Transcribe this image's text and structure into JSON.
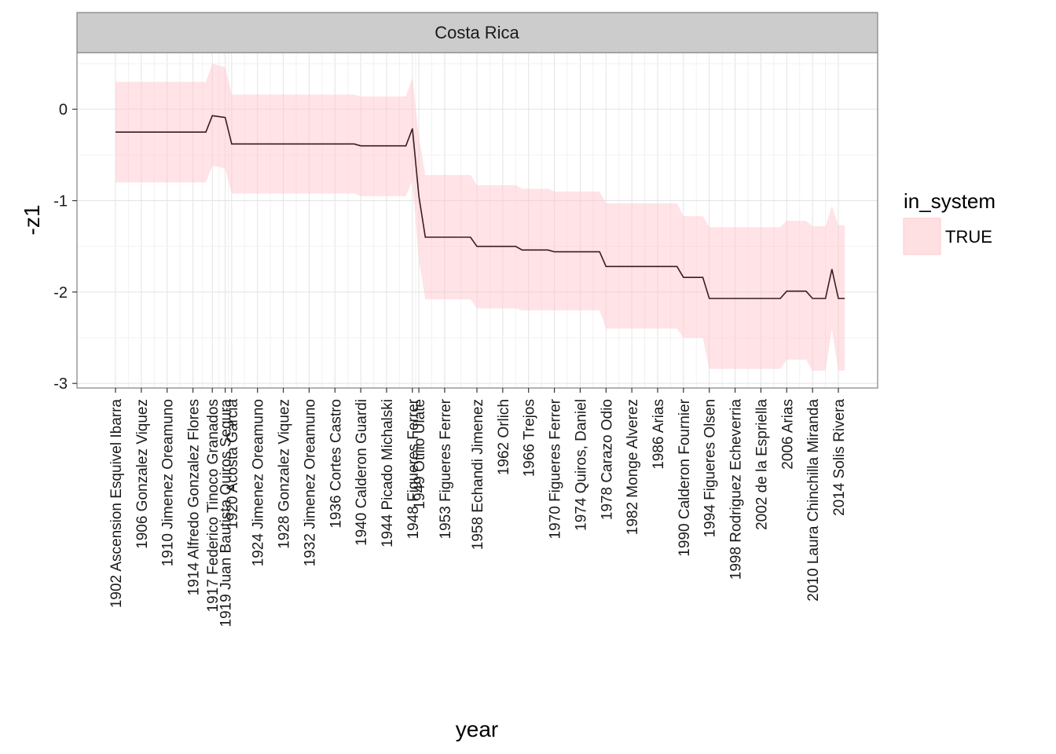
{
  "chart_data": {
    "type": "line",
    "facet": "Costa Rica",
    "xlabel": "year",
    "ylabel": "-z1",
    "ylim": [
      -3.05,
      0.62
    ],
    "y_ticks": [
      0,
      -1,
      -2,
      -3
    ],
    "y_tick_labels": [
      "0",
      "-1",
      "-2",
      "-3"
    ],
    "grid": true,
    "legend": {
      "title": "in_system",
      "position": "right",
      "entries": [
        "TRUE"
      ],
      "fill": "#ffe0e2",
      "border": "#ffc9ce"
    },
    "line_color": "#3d1a1e",
    "band_color": "#ffc2c8",
    "x_tick_labels": [
      {
        "year": 1902,
        "label": "1902 Ascension Esquivel Ibarra"
      },
      {
        "year": 1906,
        "label": "1906 Gonzalez Viquez"
      },
      {
        "year": 1910,
        "label": "1910 Jimenez Oreamuno"
      },
      {
        "year": 1914,
        "label": "1914 Alfredo Gonzalez Flores"
      },
      {
        "year": 1917,
        "label": "1917 Federico Tinoco Granados"
      },
      {
        "year": 1919,
        "label": "1919 Juan Bautista Quiros Segura"
      },
      {
        "year": 1920,
        "label": "1920 Acosta Garcia"
      },
      {
        "year": 1924,
        "label": "1924 Jimenez Oreamuno"
      },
      {
        "year": 1928,
        "label": "1928 Gonzalez Viquez"
      },
      {
        "year": 1932,
        "label": "1932 Jimenez Oreamuno"
      },
      {
        "year": 1936,
        "label": "1936 Cortes Castro"
      },
      {
        "year": 1940,
        "label": "1940 Calderon Guardi"
      },
      {
        "year": 1944,
        "label": "1944 Picado Michalski"
      },
      {
        "year": 1948,
        "label": "1948 Figueres Ferrer"
      },
      {
        "year": 1949,
        "label": "1949 Otilio Ulate"
      },
      {
        "year": 1953,
        "label": "1953 Figueres Ferrer"
      },
      {
        "year": 1958,
        "label": "1958 Echandi Jimenez"
      },
      {
        "year": 1962,
        "label": "1962 Orlich"
      },
      {
        "year": 1966,
        "label": "1966 Trejos"
      },
      {
        "year": 1970,
        "label": "1970 Figueres Ferrer"
      },
      {
        "year": 1974,
        "label": "1974 Quiros, Daniel"
      },
      {
        "year": 1978,
        "label": "1978 Carazo Odio"
      },
      {
        "year": 1982,
        "label": "1982 Monge Alverez"
      },
      {
        "year": 1986,
        "label": "1986 Arias"
      },
      {
        "year": 1990,
        "label": "1990 Calderon Fournier"
      },
      {
        "year": 1994,
        "label": "1994 Figueres Olsen"
      },
      {
        "year": 1998,
        "label": "1998 Rodriguez Echeverria"
      },
      {
        "year": 2002,
        "label": "2002 de la Espriella"
      },
      {
        "year": 2006,
        "label": "2006 Arias"
      },
      {
        "year": 2010,
        "label": "2010 Laura Chinchilla Miranda"
      },
      {
        "year": 2014,
        "label": "2014 Solis Rivera"
      }
    ],
    "series": [
      {
        "points": [
          {
            "x": 1902,
            "y": -0.25,
            "lo": -0.8,
            "hi": 0.3
          },
          {
            "x": 1916,
            "y": -0.25,
            "lo": -0.8,
            "hi": 0.3
          },
          {
            "x": 1917,
            "y": -0.07,
            "lo": -0.62,
            "hi": 0.5
          },
          {
            "x": 1918,
            "y": -0.08,
            "lo": -0.63,
            "hi": 0.48
          },
          {
            "x": 1919,
            "y": -0.09,
            "lo": -0.65,
            "hi": 0.46
          },
          {
            "x": 1920,
            "y": -0.38,
            "lo": -0.92,
            "hi": 0.16
          },
          {
            "x": 1939,
            "y": -0.38,
            "lo": -0.92,
            "hi": 0.16
          },
          {
            "x": 1940,
            "y": -0.4,
            "lo": -0.95,
            "hi": 0.14
          },
          {
            "x": 1947,
            "y": -0.4,
            "lo": -0.95,
            "hi": 0.14
          },
          {
            "x": 1948,
            "y": -0.21,
            "lo": -0.78,
            "hi": 0.35
          },
          {
            "x": 1949,
            "y": -0.95,
            "lo": -1.65,
            "hi": -0.3
          },
          {
            "x": 1950,
            "y": -1.4,
            "lo": -2.08,
            "hi": -0.72
          },
          {
            "x": 1957,
            "y": -1.4,
            "lo": -2.08,
            "hi": -0.72
          },
          {
            "x": 1958,
            "y": -1.5,
            "lo": -2.18,
            "hi": -0.83
          },
          {
            "x": 1964,
            "y": -1.5,
            "lo": -2.18,
            "hi": -0.83
          },
          {
            "x": 1965,
            "y": -1.54,
            "lo": -2.2,
            "hi": -0.87
          },
          {
            "x": 1969,
            "y": -1.54,
            "lo": -2.2,
            "hi": -0.87
          },
          {
            "x": 1970,
            "y": -1.56,
            "lo": -2.2,
            "hi": -0.9
          },
          {
            "x": 1977,
            "y": -1.56,
            "lo": -2.2,
            "hi": -0.9
          },
          {
            "x": 1978,
            "y": -1.72,
            "lo": -2.4,
            "hi": -1.03
          },
          {
            "x": 1989,
            "y": -1.72,
            "lo": -2.4,
            "hi": -1.03
          },
          {
            "x": 1990,
            "y": -1.84,
            "lo": -2.5,
            "hi": -1.17
          },
          {
            "x": 1993,
            "y": -1.84,
            "lo": -2.5,
            "hi": -1.17
          },
          {
            "x": 1994,
            "y": -2.07,
            "lo": -2.84,
            "hi": -1.29
          },
          {
            "x": 2005,
            "y": -2.07,
            "lo": -2.84,
            "hi": -1.29
          },
          {
            "x": 2006,
            "y": -1.99,
            "lo": -2.74,
            "hi": -1.22
          },
          {
            "x": 2009,
            "y": -1.99,
            "lo": -2.74,
            "hi": -1.22
          },
          {
            "x": 2010,
            "y": -2.07,
            "lo": -2.86,
            "hi": -1.28
          },
          {
            "x": 2012,
            "y": -2.07,
            "lo": -2.86,
            "hi": -1.28
          },
          {
            "x": 2013,
            "y": -1.75,
            "lo": -2.4,
            "hi": -1.06
          },
          {
            "x": 2014,
            "y": -2.07,
            "lo": -2.86,
            "hi": -1.27
          },
          {
            "x": 2015,
            "y": -2.07,
            "lo": -2.86,
            "hi": -1.27
          }
        ]
      }
    ]
  }
}
